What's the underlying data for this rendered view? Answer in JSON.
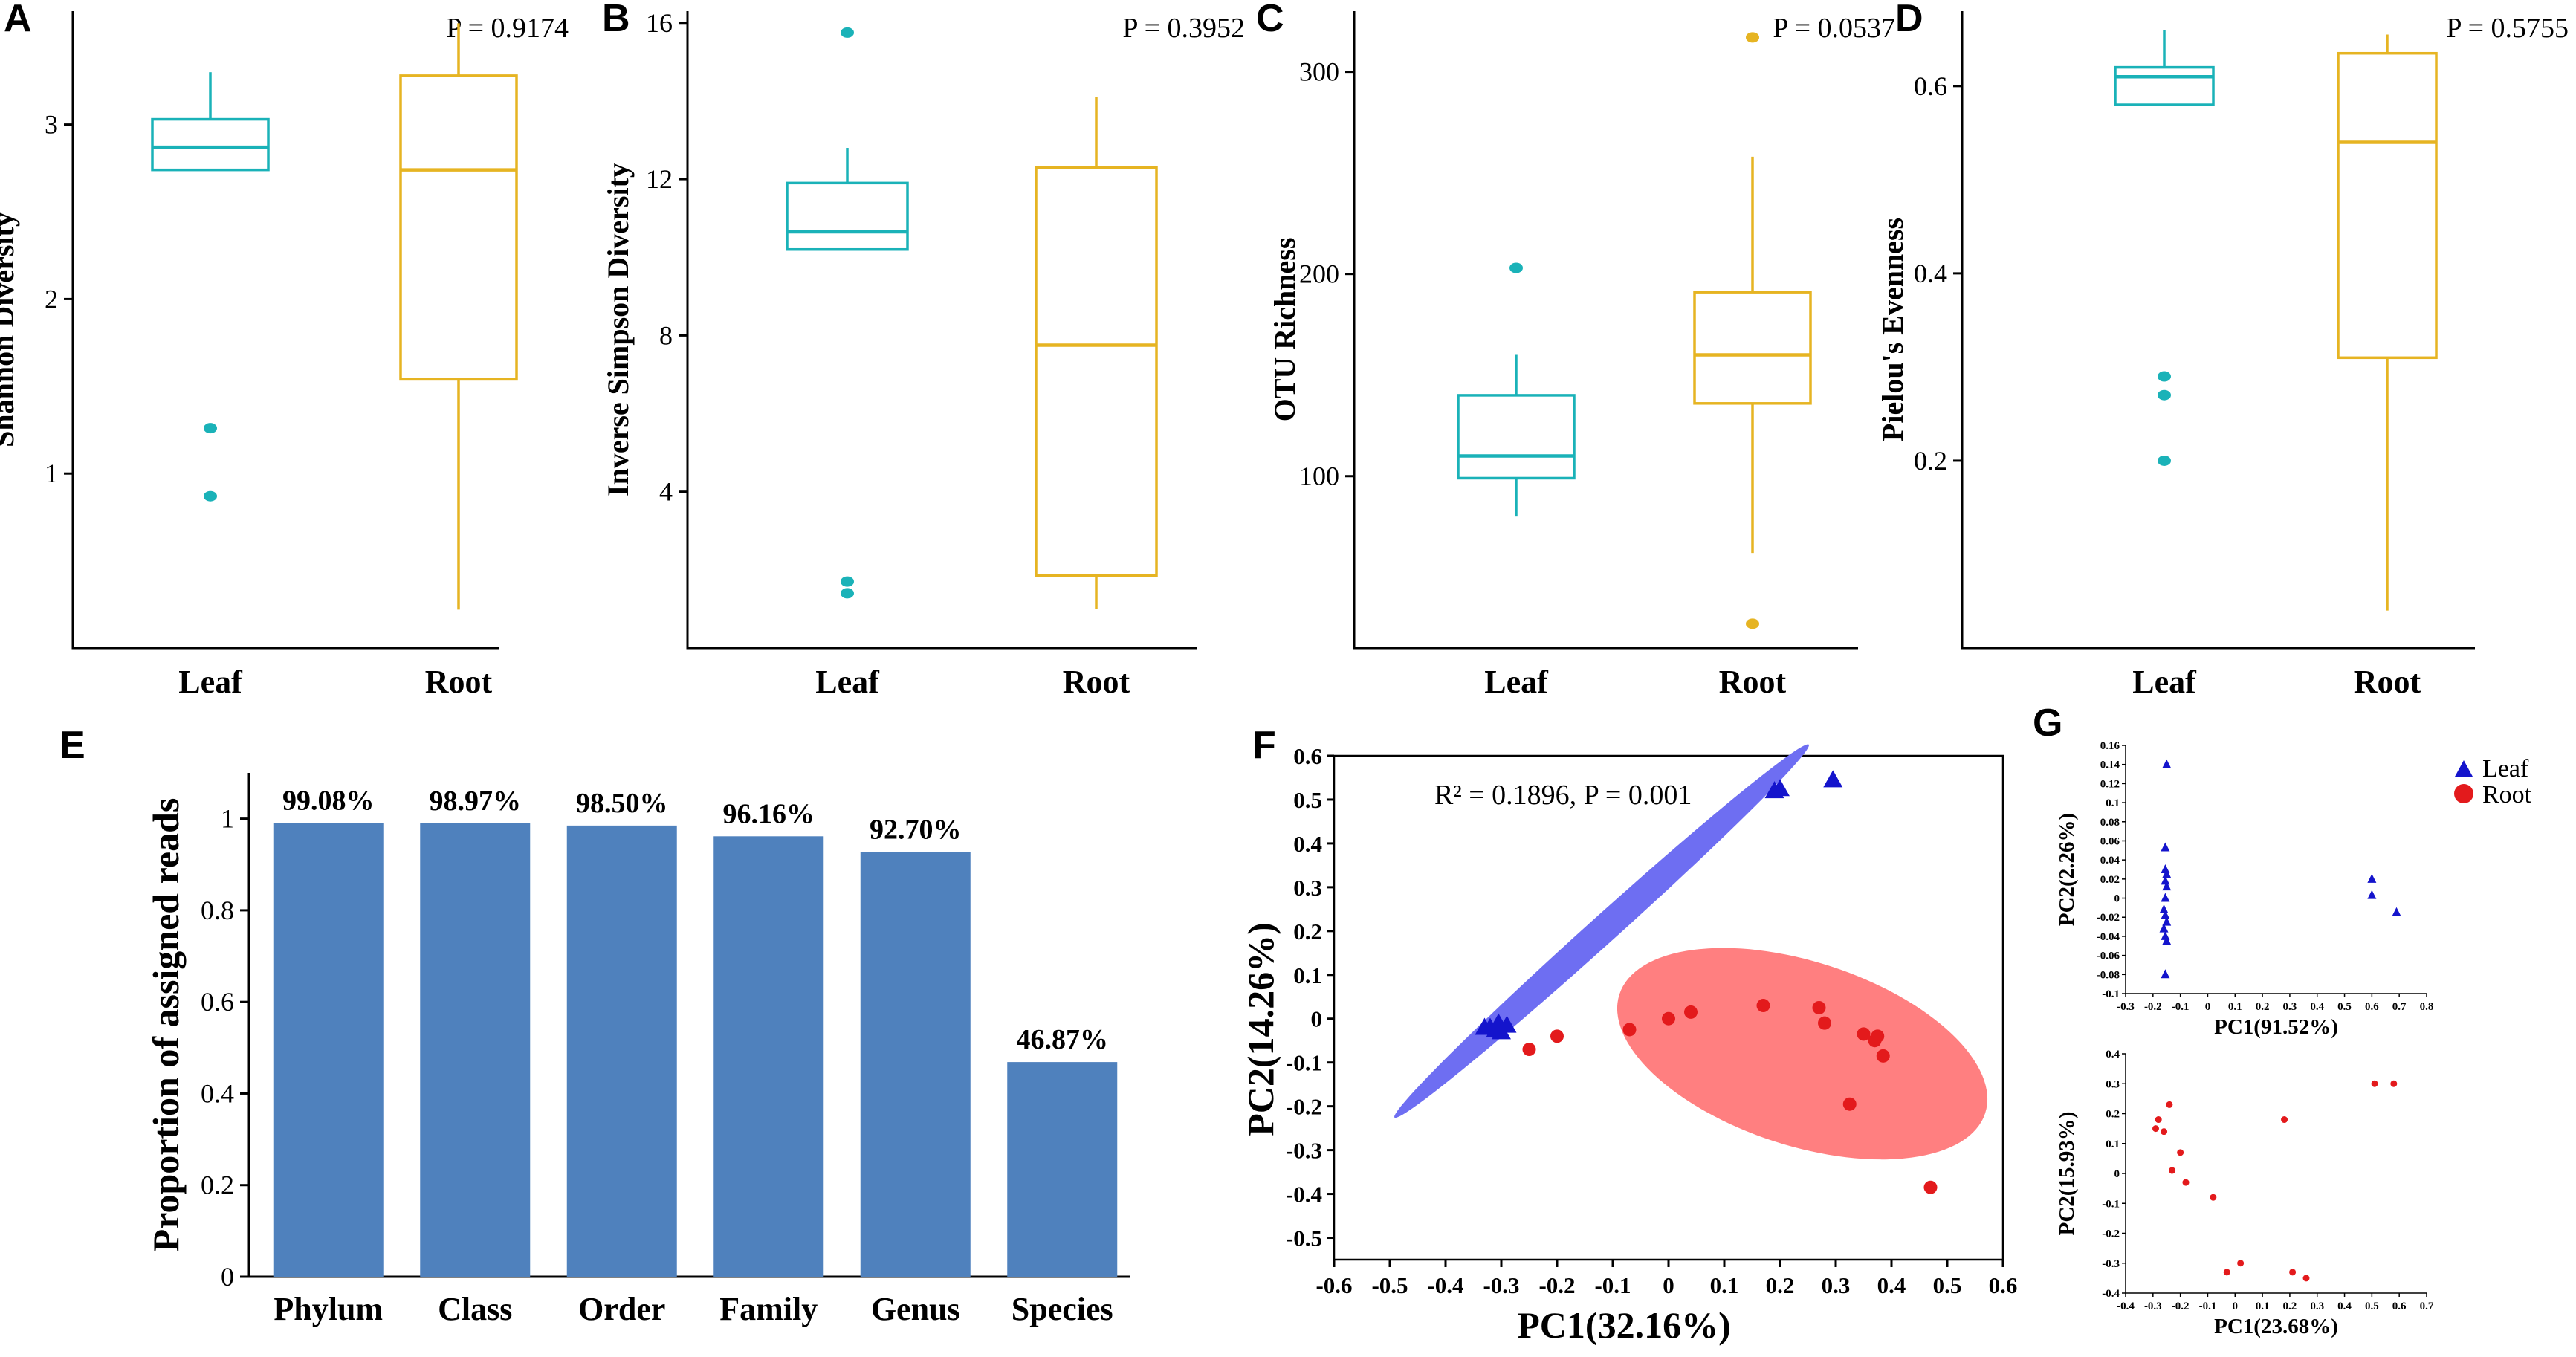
{
  "colors": {
    "leaf": "#1ab2b8",
    "root": "#e6b422",
    "bar": "#4f81bd",
    "leaf_pca": "#1414cc",
    "root_pca": "#e31a1c",
    "leaf_ellipse": "#6e6ef2",
    "root_ellipse": "#ff7f80"
  },
  "chart_data": [
    {
      "panel": "A",
      "type": "box",
      "ylabel": "Shannon Diversity",
      "categories": [
        "Leaf",
        "Root"
      ],
      "ylim": [
        0,
        3.65
      ],
      "yticks": [
        1,
        2,
        3
      ],
      "annotation": "P = 0.9174",
      "boxes": [
        {
          "name": "Leaf",
          "min": 2.74,
          "q1": 2.74,
          "median": 2.87,
          "q3": 3.03,
          "max": 3.3,
          "outliers": [
            1.26,
            0.87
          ]
        },
        {
          "name": "Root",
          "min": 0.22,
          "q1": 1.54,
          "median": 2.74,
          "q3": 3.28,
          "max": 3.58,
          "outliers": []
        }
      ]
    },
    {
      "panel": "B",
      "type": "box",
      "ylabel": "Inverse Simpson Diversity",
      "categories": [
        "Leaf",
        "Root"
      ],
      "ylim": [
        0,
        16.3
      ],
      "yticks": [
        4,
        8,
        12,
        16
      ],
      "annotation": "P = 0.3952",
      "boxes": [
        {
          "name": "Leaf",
          "min": 10.2,
          "q1": 10.2,
          "median": 10.65,
          "q3": 11.9,
          "max": 12.8,
          "outliers": [
            15.75,
            1.7,
            1.4
          ]
        },
        {
          "name": "Root",
          "min": 1.0,
          "q1": 1.85,
          "median": 7.75,
          "q3": 12.3,
          "max": 14.1,
          "outliers": []
        }
      ]
    },
    {
      "panel": "C",
      "type": "box",
      "ylabel": "OTU Richness",
      "categories": [
        "Leaf",
        "Root"
      ],
      "ylim": [
        15,
        330
      ],
      "yticks": [
        100,
        200,
        300
      ],
      "annotation": "P = 0.0537",
      "boxes": [
        {
          "name": "Leaf",
          "min": 80,
          "q1": 99,
          "median": 110,
          "q3": 140,
          "max": 160,
          "outliers": [
            203
          ]
        },
        {
          "name": "Root",
          "min": 62,
          "q1": 136,
          "median": 160,
          "q3": 191,
          "max": 258,
          "outliers": [
            317,
            27
          ]
        }
      ]
    },
    {
      "panel": "D",
      "type": "box",
      "ylabel": "Pielou's Evenness",
      "categories": [
        "Leaf",
        "Root"
      ],
      "ylim": [
        0,
        0.68
      ],
      "yticks": [
        0.2,
        0.4,
        0.6
      ],
      "annotation": "P = 0.5755",
      "boxes": [
        {
          "name": "Leaf",
          "min": 0.58,
          "q1": 0.58,
          "median": 0.61,
          "q3": 0.62,
          "max": 0.66,
          "outliers": [
            0.29,
            0.27,
            0.2
          ]
        },
        {
          "name": "Root",
          "min": 0.04,
          "q1": 0.31,
          "median": 0.54,
          "q3": 0.635,
          "max": 0.655,
          "outliers": []
        }
      ]
    },
    {
      "panel": "E",
      "type": "bar",
      "ylabel": "Proportion of assigned reads",
      "categories": [
        "Phylum",
        "Class",
        "Order",
        "Family",
        "Genus",
        "Species"
      ],
      "values": [
        0.9908,
        0.9897,
        0.985,
        0.9616,
        0.927,
        0.4687
      ],
      "labels": [
        "99.08%",
        "98.97%",
        "98.50%",
        "96.16%",
        "92.70%",
        "46.87%"
      ],
      "ylim": [
        0,
        1.1
      ],
      "yticks": [
        "0",
        "0.2",
        "0.4",
        "0.6",
        "0.8",
        "1"
      ]
    },
    {
      "panel": "F",
      "type": "scatter",
      "xlabel": "PC1(32.16%)",
      "ylabel": "PC2(14.26%)",
      "xlim": [
        -0.6,
        0.6
      ],
      "ylim": [
        -0.55,
        0.6
      ],
      "xticks": [
        "-0.6",
        "-0.5",
        "-0.4",
        "-0.3",
        "-0.2",
        "-0.1",
        "0",
        "0.1",
        "0.2",
        "0.3",
        "0.4",
        "0.5",
        "0.6"
      ],
      "yticks": [
        "-0.5",
        "-0.4",
        "-0.3",
        "-0.2",
        "-0.1",
        "0",
        "0.1",
        "0.2",
        "0.3",
        "0.4",
        "0.5",
        "0.6"
      ],
      "annotation": "R² = 0.1896, P = 0.001",
      "leaf_points": [
        [
          0.19,
          0.52
        ],
        [
          0.2,
          0.525
        ],
        [
          0.295,
          0.545
        ],
        [
          -0.32,
          -0.02
        ],
        [
          -0.31,
          -0.025
        ],
        [
          -0.3,
          -0.03
        ],
        [
          -0.33,
          -0.02
        ],
        [
          -0.29,
          -0.015
        ],
        [
          -0.305,
          -0.01
        ]
      ],
      "root_points": [
        [
          -0.25,
          -0.07
        ],
        [
          -0.2,
          -0.04
        ],
        [
          -0.07,
          -0.025
        ],
        [
          0,
          0
        ],
        [
          0.04,
          0.015
        ],
        [
          0.17,
          0.03
        ],
        [
          0.27,
          0.025
        ],
        [
          0.28,
          -0.01
        ],
        [
          0.35,
          -0.035
        ],
        [
          0.37,
          -0.05
        ],
        [
          0.375,
          -0.04
        ],
        [
          0.385,
          -0.085
        ],
        [
          0.325,
          -0.195
        ],
        [
          0.47,
          -0.385
        ]
      ],
      "leaf_ellipse": {
        "center": [
          -0.12,
          0.2
        ],
        "semi_axes": [
          0.5,
          0.025
        ],
        "angle_deg": 42
      },
      "root_ellipse": {
        "center": [
          0.24,
          -0.08
        ],
        "semi_axes": [
          0.345,
          0.165
        ],
        "angle_deg": -18
      }
    },
    {
      "panel": "G-top",
      "type": "scatter",
      "xlabel": "PC1(91.52%)",
      "ylabel": "PC2(2.26%)",
      "xlim": [
        -0.3,
        0.8
      ],
      "ylim": [
        -0.1,
        0.16
      ],
      "xticks": [
        "-0.3",
        "-0.2",
        "-0.1",
        "0",
        "0.1",
        "0.2",
        "0.3",
        "0.4",
        "0.5",
        "0.6",
        "0.7",
        "0.8"
      ],
      "yticks": [
        "-0.1",
        "-0.08",
        "-0.06",
        "-0.04",
        "-0.02",
        "0",
        "0.02",
        "0.04",
        "0.06",
        "0.08",
        "0.1",
        "0.12",
        "0.14",
        "0.16"
      ],
      "points": [
        [
          -0.15,
          0.14
        ],
        [
          -0.155,
          0.053
        ],
        [
          -0.155,
          0.03
        ],
        [
          -0.15,
          0.025
        ],
        [
          -0.155,
          0.018
        ],
        [
          -0.15,
          0.012
        ],
        [
          -0.155,
          0.0
        ],
        [
          -0.16,
          -0.012
        ],
        [
          -0.155,
          -0.018
        ],
        [
          -0.15,
          -0.025
        ],
        [
          -0.16,
          -0.032
        ],
        [
          -0.155,
          -0.04
        ],
        [
          -0.15,
          -0.045
        ],
        [
          -0.155,
          -0.08
        ],
        [
          0.6,
          0.02
        ],
        [
          0.6,
          0.003
        ],
        [
          0.69,
          -0.015
        ]
      ],
      "legend": [
        "Leaf",
        "Root"
      ]
    },
    {
      "panel": "G-bottom",
      "type": "scatter",
      "xlabel": "PC1(23.68%)",
      "ylabel": "PC2(15.93%)",
      "xlim": [
        -0.4,
        0.7
      ],
      "ylim": [
        -0.4,
        0.4
      ],
      "xticks": [
        "-0.4",
        "-0.3",
        "-0.2",
        "-0.1",
        "0",
        "0.1",
        "0.2",
        "0.3",
        "0.4",
        "0.5",
        "0.6",
        "0.7"
      ],
      "yticks": [
        "-0.4",
        "-0.3",
        "-0.2",
        "-0.1",
        "0",
        "0.1",
        "0.2",
        "0.3",
        "0.4"
      ],
      "points": [
        [
          -0.29,
          0.15
        ],
        [
          -0.28,
          0.18
        ],
        [
          -0.26,
          0.14
        ],
        [
          -0.24,
          0.23
        ],
        [
          -0.23,
          0.01
        ],
        [
          -0.2,
          0.07
        ],
        [
          -0.18,
          -0.03
        ],
        [
          -0.08,
          -0.08
        ],
        [
          -0.03,
          -0.33
        ],
        [
          0.02,
          -0.3
        ],
        [
          0.18,
          0.18
        ],
        [
          0.21,
          -0.33
        ],
        [
          0.26,
          -0.35
        ],
        [
          0.51,
          0.3
        ],
        [
          0.58,
          0.3
        ]
      ]
    }
  ],
  "panel_letters": [
    "A",
    "B",
    "C",
    "D",
    "E",
    "F",
    "G"
  ]
}
